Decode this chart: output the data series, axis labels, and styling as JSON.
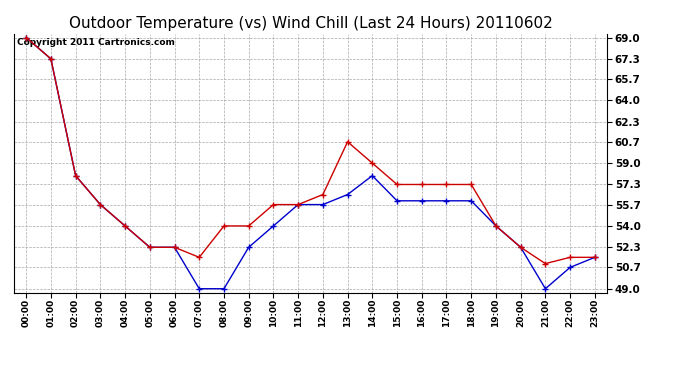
{
  "title": "Outdoor Temperature (vs) Wind Chill (Last 24 Hours) 20110602",
  "copyright_text": "Copyright 2011 Cartronics.com",
  "x_labels": [
    "00:00",
    "01:00",
    "02:00",
    "03:00",
    "04:00",
    "05:00",
    "06:00",
    "07:00",
    "08:00",
    "09:00",
    "10:00",
    "11:00",
    "12:00",
    "13:00",
    "14:00",
    "15:00",
    "16:00",
    "17:00",
    "18:00",
    "19:00",
    "20:00",
    "21:00",
    "22:00",
    "23:00"
  ],
  "temp": [
    69.0,
    67.3,
    58.0,
    55.7,
    54.0,
    52.3,
    52.3,
    51.5,
    54.0,
    54.0,
    55.7,
    55.7,
    56.5,
    60.7,
    59.0,
    57.3,
    57.3,
    57.3,
    57.3,
    54.0,
    52.3,
    51.0,
    51.5,
    51.5
  ],
  "windchill": [
    69.0,
    67.3,
    58.0,
    55.7,
    54.0,
    52.3,
    52.3,
    49.0,
    49.0,
    52.3,
    54.0,
    55.7,
    55.7,
    56.5,
    58.0,
    56.0,
    56.0,
    56.0,
    56.0,
    54.0,
    52.3,
    49.0,
    50.7,
    51.5
  ],
  "temp_color": "#cc0000",
  "windchill_color": "#0000cc",
  "bg_color": "#ffffff",
  "plot_bg_color": "#ffffff",
  "grid_color": "#aaaaaa",
  "ylim_min": 49.0,
  "ylim_max": 69.0,
  "yticks": [
    49.0,
    50.7,
    52.3,
    54.0,
    55.7,
    57.3,
    59.0,
    60.7,
    62.3,
    64.0,
    65.7,
    67.3,
    69.0
  ],
  "title_fontsize": 11,
  "copyright_fontsize": 6.5,
  "marker_size": 4,
  "line_width": 1.0
}
